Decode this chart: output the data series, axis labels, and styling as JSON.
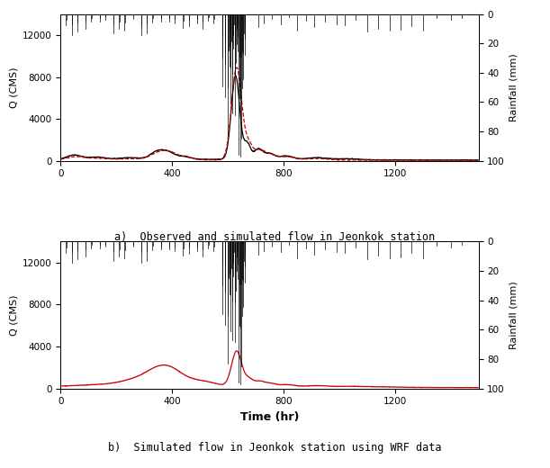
{
  "title_a": "a)  Observed and simulated flow in Jeonkok station",
  "title_b": "b)  Simulated flow in Jeonkok station using WRF data",
  "xlabel": "Time (hr)",
  "ylabel_left": "Q (CMS)",
  "ylabel_right": "Rainfall (mm)",
  "xlim": [
    0,
    1500
  ],
  "ylim_flow": [
    0,
    14000
  ],
  "ylim_rain": [
    0,
    100
  ],
  "yticks_flow": [
    0,
    4000,
    8000,
    12000
  ],
  "yticks_rain": [
    0,
    20,
    40,
    60,
    80,
    100
  ],
  "xticks": [
    0,
    400,
    800,
    1200
  ],
  "background_color": "#ffffff",
  "flow_color_obs": "#000000",
  "flow_color_sim_a": "#cc0000",
  "flow_color_sim_b": "#cc0000",
  "rain_color": "#000000",
  "rain_bar_width": 1.5
}
